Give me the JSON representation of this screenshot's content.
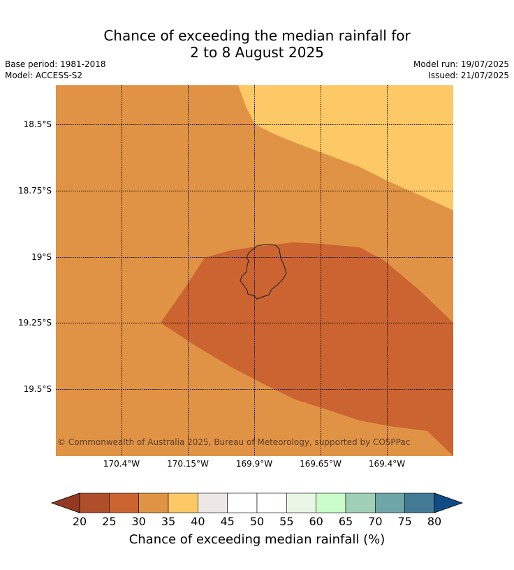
{
  "title": {
    "line1": "Chance of exceeding the median rainfall for",
    "line2": "2 to 8 August 2025"
  },
  "meta": {
    "base_period": "Base period: 1981-2018",
    "model": "Model: ACCESS-S2",
    "model_run": "Model run: 19/07/2025",
    "issued": "Issued: 21/07/2025"
  },
  "map": {
    "lat_ticks": [
      "18.5°S",
      "18.75°S",
      "19°S",
      "19.25°S",
      "19.5°S"
    ],
    "lon_ticks": [
      "170.4°W",
      "170.15°W",
      "169.9°W",
      "169.65°W",
      "169.4°W"
    ],
    "copyright": "© Commonwealth of Australia 2025, Bureau of Meteorology, supported by COSPPac",
    "island": "Niue",
    "zone_colors": {
      "band_30_35": "#e09345",
      "band_35_40": "#fdc966",
      "band_25_30": "#cb6431"
    }
  },
  "colorbar": {
    "label": "Chance of exceeding median rainfall (%)",
    "ticks": [
      "20",
      "25",
      "30",
      "35",
      "40",
      "45",
      "50",
      "55",
      "60",
      "65",
      "70",
      "75",
      "80"
    ],
    "under_color": "#953924",
    "over_color": "#0f4c87",
    "colors": [
      "#b04e2a",
      "#cb6431",
      "#e09345",
      "#fdc966",
      "#ede8e5",
      "#ffffff",
      "#ffffff",
      "#e9f6e6",
      "#cafdc9",
      "#9fd0b7",
      "#6ea5a6",
      "#427995"
    ]
  }
}
